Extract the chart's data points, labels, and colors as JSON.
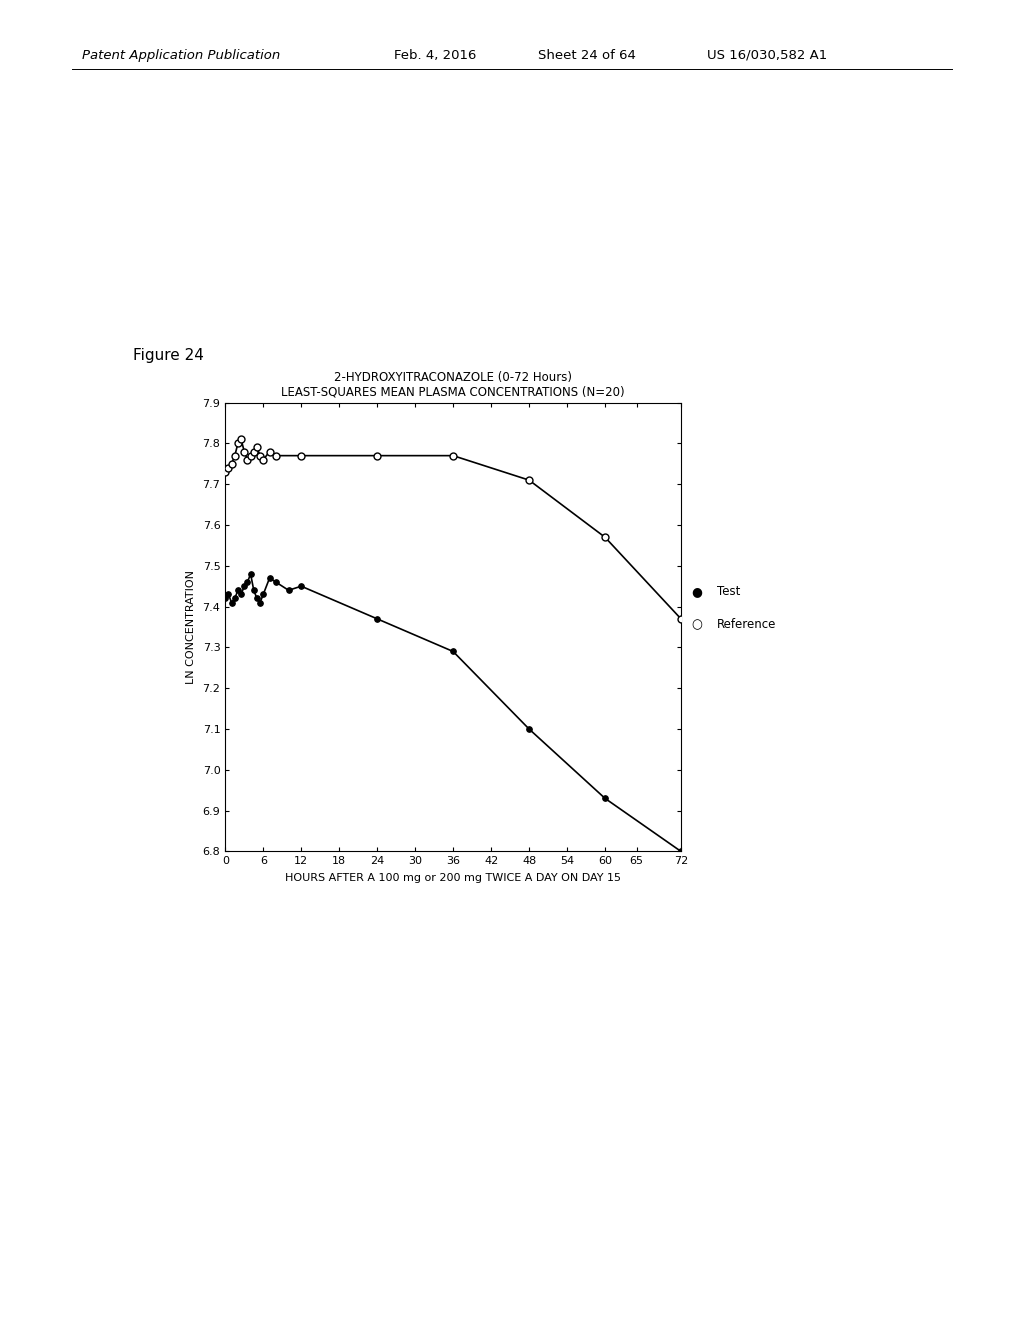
{
  "title_line1": "2-HYDROXYITRACONAZOLE (0-72 Hours)",
  "title_line2": "LEAST-SQUARES MEAN PLASMA CONCENTRATIONS (N=20)",
  "xlabel": "HOURS AFTER A 100 mg or 200 mg TWICE A DAY ON DAY 15",
  "ylabel": "LN CONCENTRATION",
  "figure_label": "Figure 24",
  "xlim": [
    0,
    72
  ],
  "ylim": [
    6.8,
    7.9
  ],
  "xticks": [
    0,
    6,
    12,
    18,
    24,
    30,
    36,
    42,
    48,
    54,
    60,
    65,
    72
  ],
  "yticks": [
    6.8,
    6.9,
    7.0,
    7.1,
    7.2,
    7.3,
    7.4,
    7.5,
    7.6,
    7.7,
    7.8,
    7.9
  ],
  "test_x": [
    0,
    0.5,
    1,
    1.5,
    2,
    2.5,
    3,
    3.5,
    4,
    4.5,
    5,
    5.5,
    6,
    7,
    8,
    10,
    12,
    24,
    36,
    48,
    60,
    72
  ],
  "test_y": [
    7.42,
    7.43,
    7.41,
    7.42,
    7.44,
    7.43,
    7.45,
    7.46,
    7.48,
    7.44,
    7.42,
    7.41,
    7.43,
    7.47,
    7.46,
    7.44,
    7.45,
    7.37,
    7.29,
    7.1,
    6.93,
    6.8
  ],
  "ref_x": [
    0,
    0.5,
    1,
    1.5,
    2,
    2.5,
    3,
    3.5,
    4,
    4.5,
    5,
    5.5,
    6,
    7,
    8,
    12,
    24,
    36,
    48,
    60,
    72
  ],
  "ref_y": [
    7.73,
    7.74,
    7.75,
    7.77,
    7.8,
    7.81,
    7.78,
    7.76,
    7.77,
    7.78,
    7.79,
    7.77,
    7.76,
    7.78,
    7.77,
    7.77,
    7.77,
    7.77,
    7.71,
    7.57,
    7.37
  ],
  "background_color": "#ffffff",
  "line_color": "#000000",
  "marker_size_test": 4,
  "marker_size_ref": 5,
  "header_italic": "Patent Application Publication",
  "header_date": "Feb. 4, 2016",
  "header_sheet": "Sheet 24 of 64",
  "header_patent": "US 16/030,582 A1"
}
